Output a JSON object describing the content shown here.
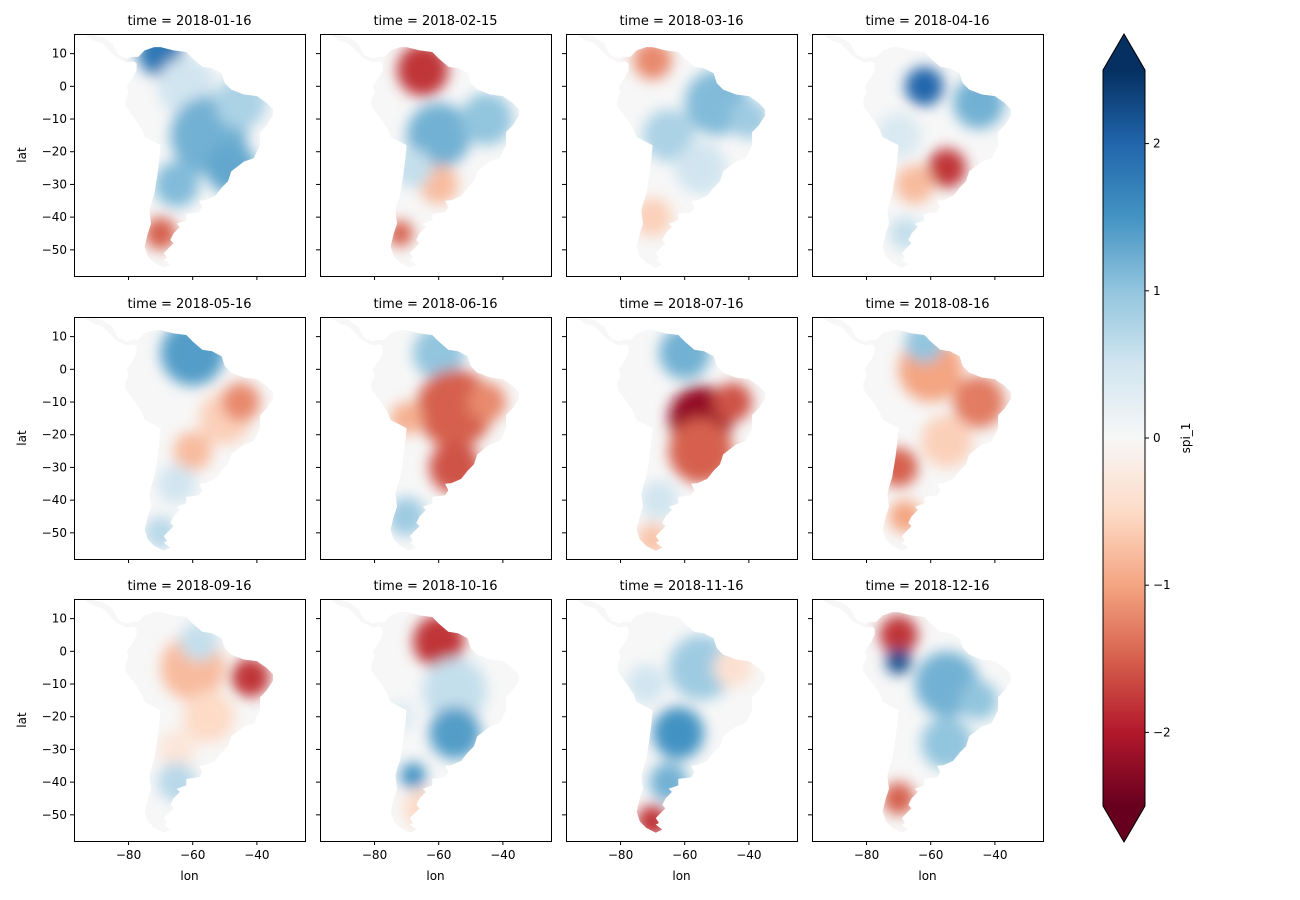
{
  "figure": {
    "colorbar": {
      "label": "spi_1",
      "ticks": [
        -2,
        -1,
        0,
        1,
        2
      ],
      "tick_labels": [
        "−2",
        "−1",
        "0",
        "1",
        "2"
      ],
      "range": [
        -2.5,
        2.5
      ],
      "extend": "both",
      "colormap": "RdBu",
      "colors": [
        "#67001f",
        "#b2182b",
        "#d6604d",
        "#f4a582",
        "#fddbc7",
        "#f7f7f7",
        "#d1e5f0",
        "#92c5de",
        "#4393c3",
        "#2166ac",
        "#053061"
      ]
    }
  },
  "chart_data": {
    "type": "heatmap",
    "variable": "spi_1",
    "layout": {
      "rows": 3,
      "cols": 4
    },
    "xlabel": "lon",
    "ylabel": "lat",
    "xlim": [
      -97,
      -25
    ],
    "ylim": [
      -58,
      16
    ],
    "x_ticks": [
      -80,
      -60,
      -40
    ],
    "x_tick_labels": [
      "−80",
      "−60",
      "−40"
    ],
    "y_ticks": [
      10,
      0,
      -10,
      -20,
      -30,
      -40,
      -50
    ],
    "y_tick_labels": [
      "10",
      "0",
      "−10",
      "−20",
      "−30",
      "−40",
      "−50"
    ],
    "panels": [
      {
        "title": "time = 2018-01-16",
        "blobs": [
          [
            -70,
            10,
            7,
            1.8
          ],
          [
            -62,
            0,
            9,
            0.5
          ],
          [
            -55,
            -15,
            12,
            1.2
          ],
          [
            -48,
            -25,
            8,
            1.3
          ],
          [
            -65,
            -30,
            7,
            1.1
          ],
          [
            -70,
            -45,
            5,
            -1.5
          ],
          [
            -45,
            -5,
            8,
            0.8
          ]
        ]
      },
      {
        "title": "time = 2018-02-15",
        "blobs": [
          [
            -65,
            5,
            8,
            -1.8
          ],
          [
            -60,
            -15,
            10,
            1.2
          ],
          [
            -45,
            -10,
            8,
            1.0
          ],
          [
            -60,
            -30,
            6,
            -0.8
          ],
          [
            -72,
            -45,
            4,
            -1.5
          ],
          [
            -68,
            -25,
            6,
            0.6
          ]
        ]
      },
      {
        "title": "time = 2018-03-16",
        "blobs": [
          [
            -70,
            8,
            6,
            -1.2
          ],
          [
            -50,
            -5,
            10,
            1.1
          ],
          [
            -65,
            -15,
            8,
            0.8
          ],
          [
            -55,
            -25,
            8,
            0.5
          ],
          [
            -70,
            -40,
            6,
            -0.6
          ],
          [
            -40,
            -10,
            6,
            0.9
          ]
        ]
      },
      {
        "title": "time = 2018-04-16",
        "blobs": [
          [
            -62,
            0,
            6,
            2.0
          ],
          [
            -45,
            -5,
            8,
            1.2
          ],
          [
            -55,
            -25,
            6,
            -1.8
          ],
          [
            -65,
            -30,
            6,
            -0.8
          ],
          [
            -68,
            -45,
            5,
            0.6
          ],
          [
            -70,
            -15,
            7,
            0.4
          ]
        ]
      },
      {
        "title": "time = 2018-05-16",
        "blobs": [
          [
            -60,
            5,
            10,
            1.4
          ],
          [
            -50,
            -15,
            8,
            -0.6
          ],
          [
            -45,
            -10,
            6,
            -1.2
          ],
          [
            -60,
            -25,
            6,
            -0.8
          ],
          [
            -65,
            -35,
            6,
            0.5
          ],
          [
            -70,
            -50,
            5,
            0.7
          ]
        ]
      },
      {
        "title": "time = 2018-06-16",
        "blobs": [
          [
            -60,
            5,
            8,
            1.0
          ],
          [
            -55,
            -12,
            12,
            -1.5
          ],
          [
            -55,
            -30,
            8,
            -1.6
          ],
          [
            -70,
            -45,
            6,
            0.9
          ],
          [
            -45,
            -10,
            6,
            -1.2
          ],
          [
            -70,
            -15,
            5,
            -0.9
          ]
        ]
      },
      {
        "title": "time = 2018-07-16",
        "blobs": [
          [
            -60,
            5,
            8,
            1.2
          ],
          [
            -55,
            -15,
            10,
            -2.2
          ],
          [
            -55,
            -25,
            10,
            -1.5
          ],
          [
            -68,
            -40,
            6,
            0.5
          ],
          [
            -70,
            -52,
            5,
            -0.7
          ],
          [
            -45,
            -10,
            6,
            -1.6
          ]
        ]
      },
      {
        "title": "time = 2018-08-16",
        "blobs": [
          [
            -60,
            0,
            10,
            -1.0
          ],
          [
            -45,
            -10,
            8,
            -1.3
          ],
          [
            -55,
            -22,
            8,
            -0.6
          ],
          [
            -70,
            -30,
            6,
            -1.5
          ],
          [
            -68,
            -45,
            5,
            -1.0
          ],
          [
            -62,
            8,
            6,
            1.0
          ]
        ]
      },
      {
        "title": "time = 2018-09-16",
        "blobs": [
          [
            -60,
            -5,
            10,
            -0.8
          ],
          [
            -42,
            -8,
            6,
            -1.8
          ],
          [
            -55,
            -20,
            8,
            -0.5
          ],
          [
            -65,
            -30,
            6,
            -0.3
          ],
          [
            -65,
            -40,
            6,
            0.7
          ],
          [
            -58,
            3,
            6,
            0.6
          ]
        ]
      },
      {
        "title": "time = 2018-10-16",
        "blobs": [
          [
            -60,
            3,
            8,
            -1.8
          ],
          [
            -55,
            -12,
            10,
            0.6
          ],
          [
            -55,
            -25,
            8,
            1.4
          ],
          [
            -68,
            -38,
            4,
            1.5
          ],
          [
            -65,
            -48,
            6,
            -0.5
          ],
          [
            -72,
            -20,
            5,
            0.3
          ]
        ]
      },
      {
        "title": "time = 2018-11-16",
        "blobs": [
          [
            -55,
            -5,
            10,
            0.9
          ],
          [
            -62,
            -25,
            8,
            1.5
          ],
          [
            -65,
            -40,
            6,
            1.2
          ],
          [
            -70,
            -52,
            5,
            -1.8
          ],
          [
            -45,
            -5,
            6,
            -0.4
          ],
          [
            -72,
            -10,
            6,
            0.5
          ]
        ]
      },
      {
        "title": "time = 2018-12-16",
        "blobs": [
          [
            -70,
            5,
            6,
            -1.8
          ],
          [
            -70,
            -3,
            4,
            2.2
          ],
          [
            -55,
            -10,
            10,
            1.2
          ],
          [
            -55,
            -28,
            8,
            1.0
          ],
          [
            -70,
            -45,
            5,
            -1.5
          ],
          [
            -45,
            -15,
            6,
            1.0
          ]
        ]
      }
    ]
  }
}
